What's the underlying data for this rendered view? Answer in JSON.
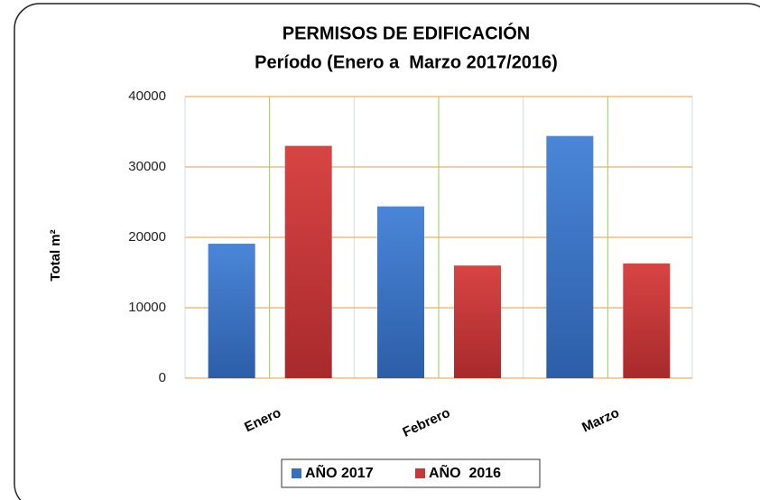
{
  "chart_data": {
    "type": "bar",
    "title": "PERMISOS DE EDIFICACIÓN",
    "subtitle": "Período (Enero a  Marzo 2017/2016)",
    "ylabel": "Total m²",
    "categories": [
      "Enero",
      "Febrero",
      "Marzo"
    ],
    "series": [
      {
        "name": "AÑO 2017",
        "color": "#3a6fc0",
        "values": [
          19100,
          24400,
          34400
        ]
      },
      {
        "name": "AÑO  2016",
        "color": "#c8383a",
        "values": [
          33000,
          16000,
          16300
        ]
      }
    ],
    "ylim": [
      0,
      40000
    ],
    "yticks": [
      0,
      10000,
      20000,
      30000,
      40000
    ],
    "grid": true,
    "legend": "bottom"
  }
}
